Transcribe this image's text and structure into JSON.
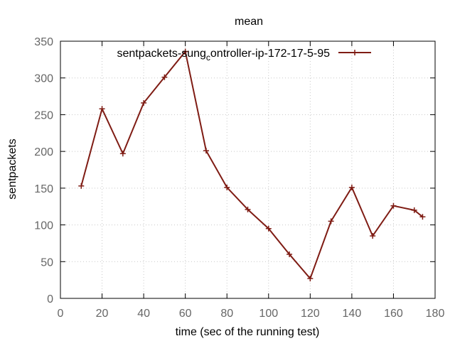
{
  "chart_data": {
    "type": "line",
    "title": "mean",
    "xlabel": "time (sec of the running test)",
    "ylabel": "sentpackets",
    "xlim": [
      0,
      180
    ],
    "ylim": [
      0,
      350
    ],
    "xticks": [
      0,
      20,
      40,
      60,
      80,
      100,
      120,
      140,
      160,
      180
    ],
    "yticks": [
      0,
      50,
      100,
      150,
      200,
      250,
      300,
      350
    ],
    "grid": true,
    "legend_position": "top-right",
    "series": [
      {
        "name": "sentpackets-sung_controller-ip-172-17-5-95",
        "legend_parts": [
          "sentpackets-sung",
          "c",
          "ontroller-ip-172-17-5-95"
        ],
        "color": "#7f1c14",
        "marker": "plus",
        "x": [
          10,
          20,
          30,
          40,
          50,
          60,
          70,
          80,
          90,
          100,
          110,
          120,
          130,
          140,
          150,
          160,
          170,
          174
        ],
        "y": [
          153,
          258,
          197,
          266,
          301,
          336,
          201,
          151,
          121,
          95,
          60,
          27,
          105,
          151,
          85,
          126,
          120,
          111
        ]
      }
    ]
  }
}
